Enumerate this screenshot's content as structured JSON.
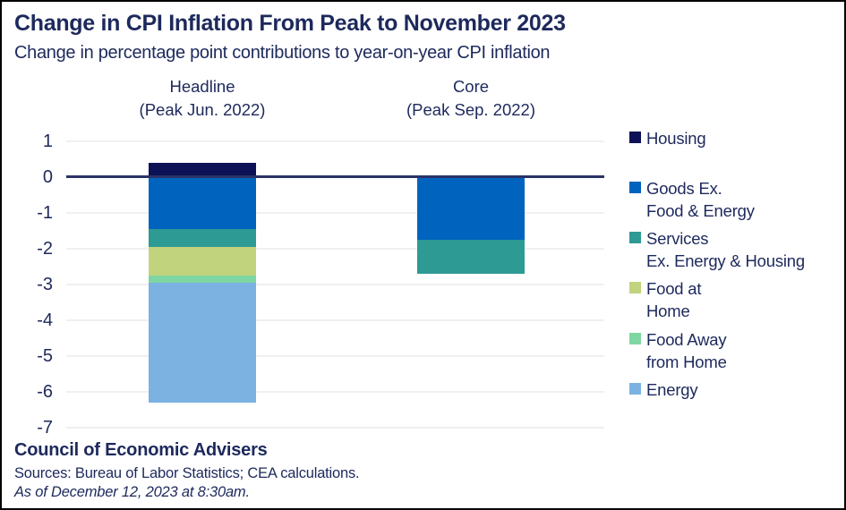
{
  "page": {
    "title": "Change in CPI Inflation From Peak to November 2023",
    "subtitle": "Change in percentage point contributions to year-on-year CPI inflation"
  },
  "footer": {
    "organization": "Council of Economic Advisers",
    "sources": "Sources: Bureau of Labor Statistics; CEA calculations.",
    "as_of": "As of December 12, 2023 at 8:30am."
  },
  "colors": {
    "text_navy": "#1d295c",
    "zero_line": "#2b3268",
    "gridline": "#f0f0f0",
    "housing": "#0d1155",
    "goods_ex_food_energy": "#0063be",
    "services_ex_energy_housing": "#2e9a94",
    "food_at_home": "#c2d37d",
    "food_away_from_home": "#7ed7a2",
    "energy": "#7cb2e2"
  },
  "chart_data": {
    "type": "bar",
    "stacked": true,
    "title": "Change in CPI Inflation From Peak to November 2023",
    "subtitle": "Change in percentage point contributions to year-on-year CPI inflation",
    "categories": [
      {
        "key": "headline",
        "label": "Headline",
        "sublabel": "(Peak Jun. 2022)"
      },
      {
        "key": "core",
        "label": "Core",
        "sublabel": "(Peak Sep. 2022)"
      }
    ],
    "series": [
      {
        "key": "housing",
        "name": "Housing",
        "color": "#0d1155",
        "values": [
          0.4,
          0
        ]
      },
      {
        "key": "goods-ex-food-energy",
        "name": "Goods Ex. Food & Energy",
        "color": "#0063be",
        "values": [
          -1.45,
          -1.75
        ]
      },
      {
        "key": "services-ex-energy-housing",
        "name": "Services Ex. Energy & Housing",
        "color": "#2e9a94",
        "values": [
          -0.5,
          -0.95
        ]
      },
      {
        "key": "food-at-home",
        "name": "Food at Home",
        "color": "#c2d37d",
        "values": [
          -0.8,
          0
        ]
      },
      {
        "key": "food-away-from-home",
        "name": "Food Away from Home",
        "color": "#7ed7a2",
        "values": [
          -0.2,
          0
        ]
      },
      {
        "key": "energy",
        "name": "Energy",
        "color": "#7cb2e2",
        "values": [
          -3.35,
          0
        ]
      }
    ],
    "yticks": [
      1,
      0,
      -1,
      -2,
      -3,
      -4,
      -5,
      -6,
      -7
    ],
    "ylim": [
      -7,
      1
    ],
    "grid": true,
    "legend_position": "right"
  },
  "legend": {
    "items": [
      {
        "key": "housing",
        "line1": "Housing",
        "line2": "",
        "color": "#0d1155"
      },
      {
        "key": "goods-ex-food-energy",
        "line1": "Goods Ex.",
        "line2": "Food & Energy",
        "color": "#0063be"
      },
      {
        "key": "services-ex-energy-housing",
        "line1": "Services",
        "line2": "Ex. Energy & Housing",
        "color": "#2e9a94"
      },
      {
        "key": "food-at-home",
        "line1": "Food at",
        "line2": "Home",
        "color": "#c2d37d"
      },
      {
        "key": "food-away-from-home",
        "line1": "Food Away",
        "line2": "from Home",
        "color": "#7ed7a2"
      },
      {
        "key": "energy",
        "line1": "Energy",
        "line2": "",
        "color": "#7cb2e2"
      }
    ]
  }
}
